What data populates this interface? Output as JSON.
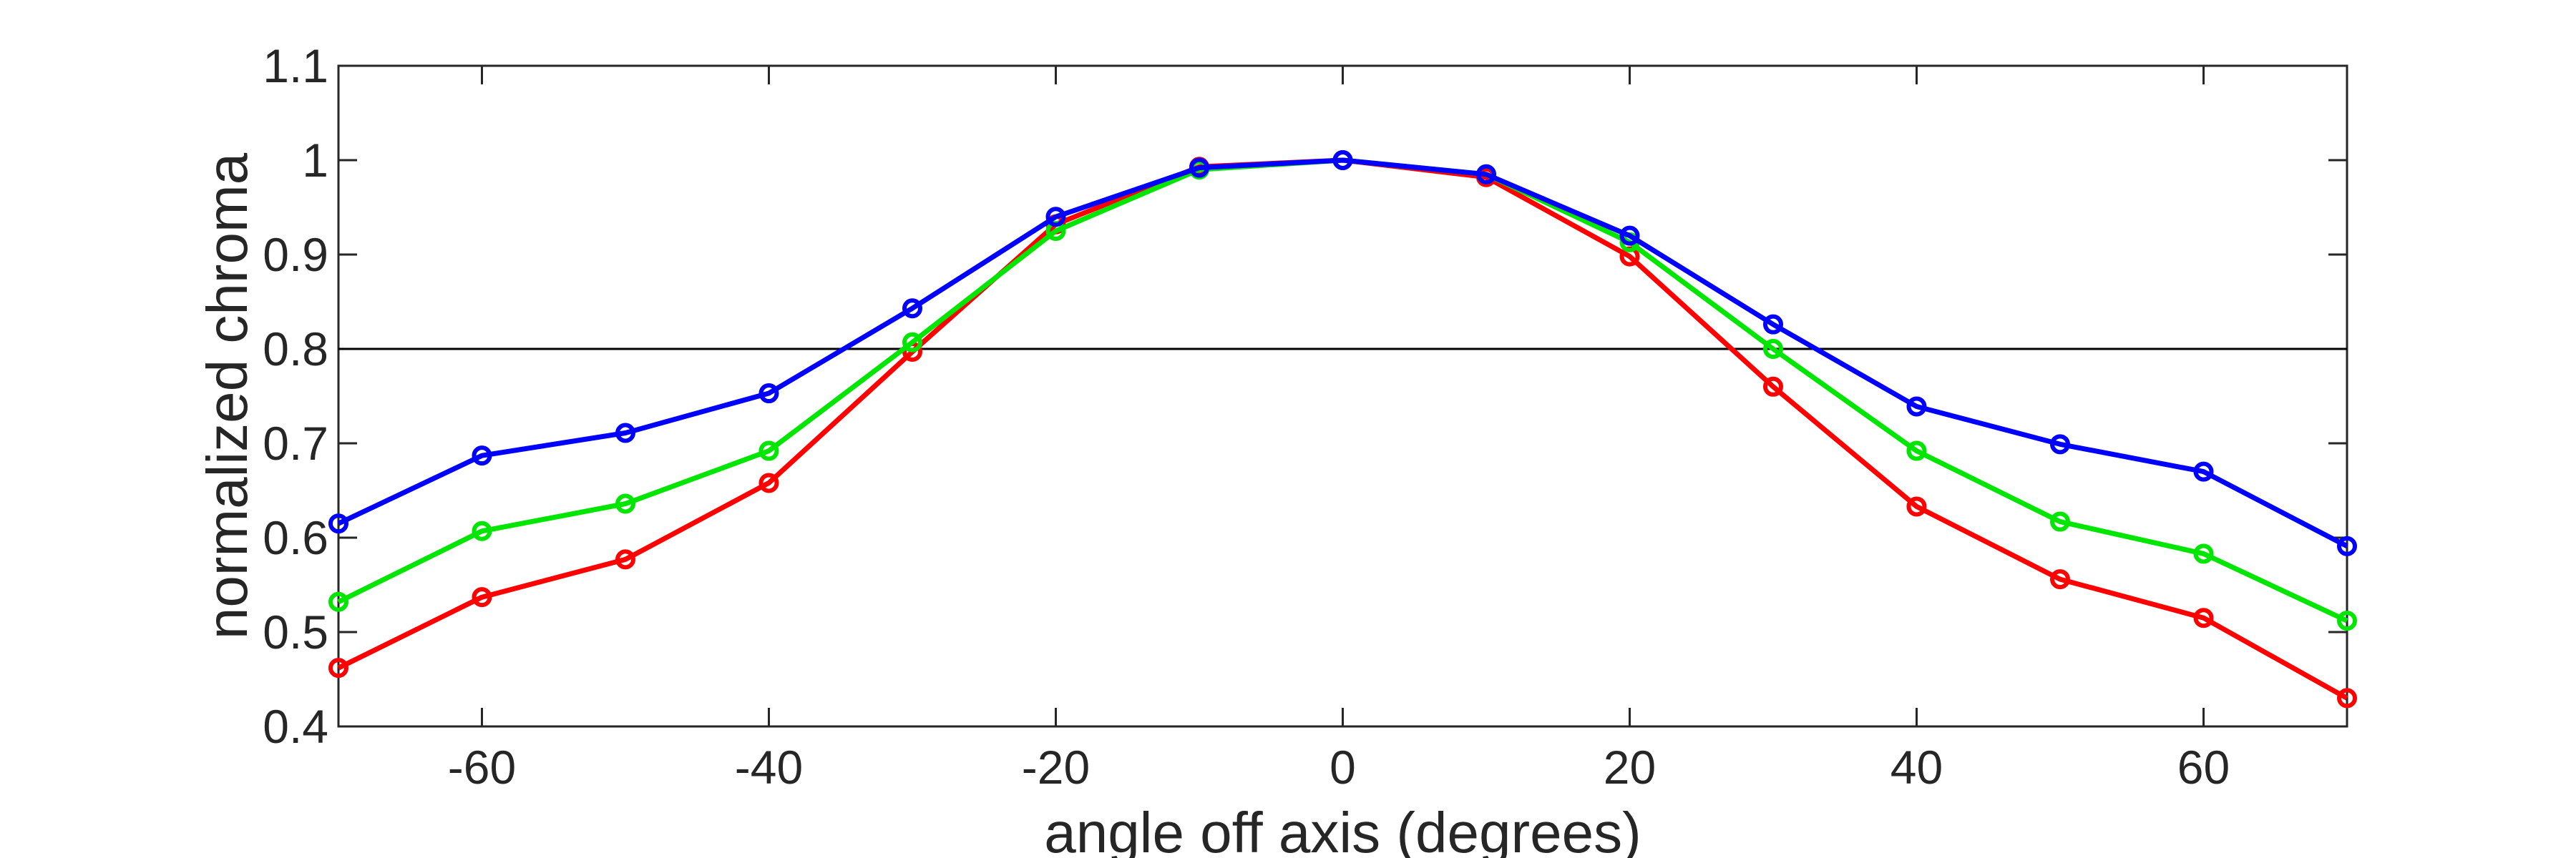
{
  "chart_data": {
    "type": "line",
    "xlabel": "angle off axis (degrees)",
    "ylabel": "normalized chroma",
    "xlim": [
      -70,
      70
    ],
    "ylim": [
      0.4,
      1.1
    ],
    "xticks": [
      -60,
      -40,
      -20,
      0,
      20,
      40,
      60
    ],
    "xtick_labels": [
      "-60",
      "-40",
      "-20",
      "0",
      "20",
      "40",
      "60"
    ],
    "yticks": [
      0.4,
      0.5,
      0.6,
      0.7,
      0.8,
      0.9,
      1.0,
      1.1
    ],
    "ytick_labels": [
      "0.4",
      "0.5",
      "0.6",
      "0.7",
      "0.8",
      "0.9",
      "1",
      "1.1"
    ],
    "grid": false,
    "reference_line": {
      "y": 0.8,
      "color": "#000000"
    },
    "x": [
      -70,
      -60,
      -50,
      -40,
      -30,
      -20,
      -10,
      0,
      10,
      20,
      30,
      40,
      50,
      60,
      70
    ],
    "series": [
      {
        "color": "#ff0000",
        "values": [
          0.462,
          0.537,
          0.577,
          0.658,
          0.797,
          0.932,
          0.993,
          1.0,
          0.982,
          0.898,
          0.76,
          0.633,
          0.556,
          0.515,
          0.43
        ]
      },
      {
        "color": "#00e600",
        "values": [
          0.532,
          0.607,
          0.636,
          0.692,
          0.807,
          0.925,
          0.99,
          1.0,
          0.985,
          0.913,
          0.8,
          0.692,
          0.617,
          0.583,
          0.512
        ]
      },
      {
        "color": "#0000ff",
        "values": [
          0.615,
          0.687,
          0.711,
          0.753,
          0.843,
          0.94,
          0.992,
          1.0,
          0.985,
          0.92,
          0.826,
          0.739,
          0.699,
          0.67,
          0.591
        ]
      }
    ]
  }
}
